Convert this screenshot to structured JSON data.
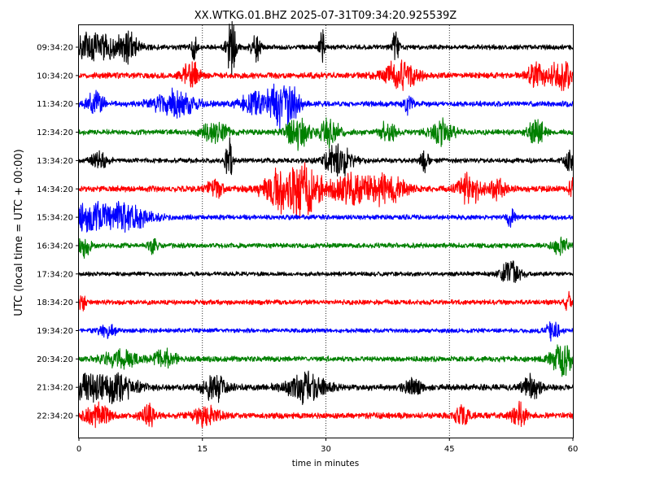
{
  "chart_data": {
    "type": "line",
    "title": "XX.WTKG.01.BHZ 2025-07-31T09:34:20.925539Z",
    "xlabel": "time in minutes",
    "ylabel": "UTC (local time = UTC + 00:00)",
    "xlim": [
      0,
      60
    ],
    "x_ticks": [
      "0",
      "15",
      "30",
      "45",
      "60"
    ],
    "x_tick_values": [
      0,
      15,
      30,
      45,
      60
    ],
    "vertical_gridlines_at": [
      15,
      30,
      45
    ],
    "colors": [
      "#000000",
      "#ff0000",
      "#0000ff",
      "#008000"
    ],
    "rows": [
      {
        "label": "09:34:20",
        "color": "#000000",
        "noise": 2.5,
        "events": [
          [
            1,
            5,
            14
          ],
          [
            6,
            1,
            10
          ],
          [
            14,
            0.3,
            14
          ],
          [
            18.5,
            0.6,
            28
          ],
          [
            21.5,
            0.6,
            14
          ],
          [
            29.5,
            0.3,
            18
          ],
          [
            38.5,
            0.4,
            18
          ]
        ]
      },
      {
        "label": "10:34:20",
        "color": "#ff0000",
        "noise": 3,
        "events": [
          [
            13.5,
            1,
            15
          ],
          [
            39,
            2,
            16
          ],
          [
            55.5,
            1,
            14
          ],
          [
            58.5,
            1.5,
            16
          ]
        ]
      },
      {
        "label": "11:34:20",
        "color": "#0000ff",
        "noise": 2.8,
        "events": [
          [
            2,
            1,
            12
          ],
          [
            11.5,
            2.5,
            13
          ],
          [
            21.5,
            2,
            13
          ],
          [
            24.3,
            1.2,
            22
          ],
          [
            26,
            1,
            12
          ],
          [
            40,
            0.5,
            10
          ]
        ]
      },
      {
        "label": "12:34:20",
        "color": "#008000",
        "noise": 2.8,
        "events": [
          [
            16.5,
            1.5,
            11
          ],
          [
            26.5,
            1.3,
            18
          ],
          [
            30.5,
            1.2,
            14
          ],
          [
            37.5,
            1,
            10
          ],
          [
            44,
            1.5,
            12
          ],
          [
            55.5,
            1,
            15
          ]
        ]
      },
      {
        "label": "13:34:20",
        "color": "#000000",
        "noise": 2.5,
        "events": [
          [
            2.5,
            1,
            9
          ],
          [
            18.2,
            0.4,
            28
          ],
          [
            31.5,
            1.8,
            15
          ],
          [
            42,
            0.5,
            10
          ],
          [
            59.5,
            0.5,
            14
          ]
        ]
      },
      {
        "label": "14:34:20",
        "color": "#ff0000",
        "noise": 3,
        "events": [
          [
            16.5,
            1,
            10
          ],
          [
            24.5,
            2.5,
            15
          ],
          [
            27.5,
            2.5,
            22
          ],
          [
            33.5,
            2.5,
            15
          ],
          [
            37.5,
            2,
            14
          ],
          [
            47.5,
            1.5,
            15
          ],
          [
            51,
            1,
            10
          ],
          [
            59.8,
            0.3,
            12
          ]
        ]
      },
      {
        "label": "15:34:20",
        "color": "#0000ff",
        "noise": 2.5,
        "events": [
          [
            1,
            4,
            13
          ],
          [
            6,
            3,
            10
          ],
          [
            52.5,
            0.5,
            10
          ]
        ]
      },
      {
        "label": "16:34:20",
        "color": "#008000",
        "noise": 2.5,
        "events": [
          [
            0.7,
            0.8,
            10
          ],
          [
            9,
            0.5,
            8
          ],
          [
            58.5,
            1,
            8
          ]
        ]
      },
      {
        "label": "17:34:20",
        "color": "#000000",
        "noise": 2.2,
        "events": [
          [
            52.5,
            1.2,
            14
          ]
        ]
      },
      {
        "label": "18:34:20",
        "color": "#ff0000",
        "noise": 2.5,
        "events": [
          [
            0.3,
            0.5,
            8
          ],
          [
            59.5,
            0.5,
            10
          ]
        ]
      },
      {
        "label": "19:34:20",
        "color": "#0000ff",
        "noise": 2.2,
        "events": [
          [
            3.5,
            1,
            8
          ],
          [
            57.5,
            1,
            8
          ]
        ]
      },
      {
        "label": "20:34:20",
        "color": "#008000",
        "noise": 2.8,
        "events": [
          [
            5,
            2,
            9
          ],
          [
            10.5,
            1.5,
            8
          ],
          [
            58.8,
            1.5,
            16
          ]
        ]
      },
      {
        "label": "21:34:20",
        "color": "#000000",
        "noise": 3.2,
        "events": [
          [
            1,
            1.5,
            12
          ],
          [
            4.5,
            2.5,
            13
          ],
          [
            16.5,
            1.5,
            12
          ],
          [
            27.5,
            2.5,
            13
          ],
          [
            40.5,
            1,
            10
          ],
          [
            55,
            1,
            12
          ]
        ]
      },
      {
        "label": "22:34:20",
        "color": "#ff0000",
        "noise": 3,
        "events": [
          [
            2.3,
            1.5,
            12
          ],
          [
            8.5,
            1,
            9
          ],
          [
            15.5,
            1.5,
            10
          ],
          [
            46.5,
            1,
            9
          ],
          [
            53.5,
            1,
            12
          ]
        ]
      }
    ]
  }
}
